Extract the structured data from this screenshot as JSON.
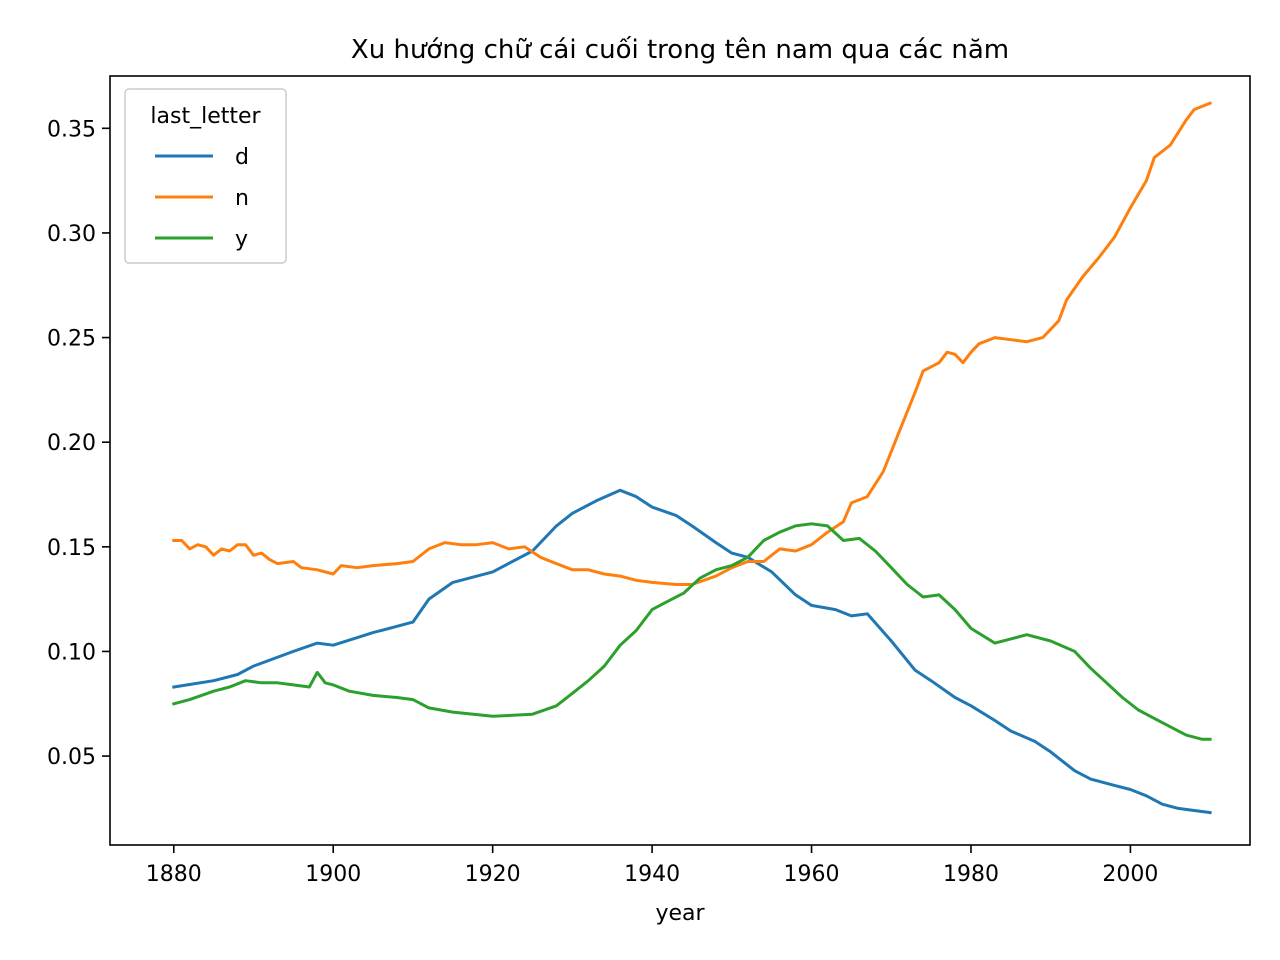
{
  "chart_data": {
    "type": "line",
    "title": "Xu hướng chữ cái cuối trong tên nam qua các năm",
    "xlabel": "year",
    "ylabel": "",
    "xlim": [
      1872,
      2015
    ],
    "ylim": [
      0.0075,
      0.375
    ],
    "xticks": [
      1880,
      1900,
      1920,
      1940,
      1960,
      1980,
      2000
    ],
    "xtick_labels": [
      "1880",
      "1900",
      "1920",
      "1940",
      "1960",
      "1980",
      "2000"
    ],
    "yticks": [
      0.05,
      0.1,
      0.15,
      0.2,
      0.25,
      0.3,
      0.35
    ],
    "ytick_labels": [
      "0.05",
      "0.10",
      "0.15",
      "0.20",
      "0.25",
      "0.30",
      "0.35"
    ],
    "grid": false,
    "legend": {
      "title": "last_letter",
      "position": "top-left"
    },
    "series": [
      {
        "name": "d",
        "color": "#1f77b4",
        "points": [
          [
            1880,
            0.083
          ],
          [
            1885,
            0.086
          ],
          [
            1888,
            0.089
          ],
          [
            1890,
            0.093
          ],
          [
            1895,
            0.1
          ],
          [
            1898,
            0.104
          ],
          [
            1900,
            0.103
          ],
          [
            1905,
            0.109
          ],
          [
            1910,
            0.114
          ],
          [
            1912,
            0.125
          ],
          [
            1915,
            0.133
          ],
          [
            1920,
            0.138
          ],
          [
            1925,
            0.148
          ],
          [
            1928,
            0.16
          ],
          [
            1930,
            0.166
          ],
          [
            1933,
            0.172
          ],
          [
            1936,
            0.177
          ],
          [
            1938,
            0.174
          ],
          [
            1940,
            0.169
          ],
          [
            1943,
            0.165
          ],
          [
            1945,
            0.16
          ],
          [
            1948,
            0.152
          ],
          [
            1950,
            0.147
          ],
          [
            1952,
            0.145
          ],
          [
            1955,
            0.138
          ],
          [
            1958,
            0.127
          ],
          [
            1960,
            0.122
          ],
          [
            1963,
            0.12
          ],
          [
            1965,
            0.117
          ],
          [
            1967,
            0.118
          ],
          [
            1970,
            0.105
          ],
          [
            1973,
            0.091
          ],
          [
            1975,
            0.086
          ],
          [
            1978,
            0.078
          ],
          [
            1980,
            0.074
          ],
          [
            1983,
            0.067
          ],
          [
            1985,
            0.062
          ],
          [
            1988,
            0.057
          ],
          [
            1990,
            0.052
          ],
          [
            1993,
            0.043
          ],
          [
            1995,
            0.039
          ],
          [
            1998,
            0.036
          ],
          [
            2000,
            0.034
          ],
          [
            2002,
            0.031
          ],
          [
            2004,
            0.027
          ],
          [
            2006,
            0.025
          ],
          [
            2008,
            0.024
          ],
          [
            2010,
            0.023
          ]
        ]
      },
      {
        "name": "n",
        "color": "#ff7f0e",
        "points": [
          [
            1880,
            0.153
          ],
          [
            1881,
            0.153
          ],
          [
            1882,
            0.149
          ],
          [
            1883,
            0.151
          ],
          [
            1884,
            0.15
          ],
          [
            1885,
            0.146
          ],
          [
            1886,
            0.149
          ],
          [
            1887,
            0.148
          ],
          [
            1888,
            0.151
          ],
          [
            1889,
            0.151
          ],
          [
            1890,
            0.146
          ],
          [
            1891,
            0.147
          ],
          [
            1892,
            0.144
          ],
          [
            1893,
            0.142
          ],
          [
            1895,
            0.143
          ],
          [
            1896,
            0.14
          ],
          [
            1898,
            0.139
          ],
          [
            1900,
            0.137
          ],
          [
            1901,
            0.141
          ],
          [
            1903,
            0.14
          ],
          [
            1905,
            0.141
          ],
          [
            1908,
            0.142
          ],
          [
            1910,
            0.143
          ],
          [
            1912,
            0.149
          ],
          [
            1914,
            0.152
          ],
          [
            1916,
            0.151
          ],
          [
            1918,
            0.151
          ],
          [
            1920,
            0.152
          ],
          [
            1922,
            0.149
          ],
          [
            1924,
            0.15
          ],
          [
            1926,
            0.145
          ],
          [
            1928,
            0.142
          ],
          [
            1930,
            0.139
          ],
          [
            1932,
            0.139
          ],
          [
            1934,
            0.137
          ],
          [
            1936,
            0.136
          ],
          [
            1938,
            0.134
          ],
          [
            1940,
            0.133
          ],
          [
            1943,
            0.132
          ],
          [
            1945,
            0.132
          ],
          [
            1948,
            0.136
          ],
          [
            1950,
            0.14
          ],
          [
            1952,
            0.143
          ],
          [
            1954,
            0.143
          ],
          [
            1956,
            0.149
          ],
          [
            1958,
            0.148
          ],
          [
            1960,
            0.151
          ],
          [
            1962,
            0.157
          ],
          [
            1964,
            0.162
          ],
          [
            1965,
            0.171
          ],
          [
            1967,
            0.174
          ],
          [
            1969,
            0.186
          ],
          [
            1971,
            0.205
          ],
          [
            1973,
            0.224
          ],
          [
            1974,
            0.234
          ],
          [
            1976,
            0.238
          ],
          [
            1977,
            0.243
          ],
          [
            1978,
            0.242
          ],
          [
            1979,
            0.238
          ],
          [
            1980,
            0.243
          ],
          [
            1981,
            0.247
          ],
          [
            1983,
            0.25
          ],
          [
            1985,
            0.249
          ],
          [
            1987,
            0.248
          ],
          [
            1989,
            0.25
          ],
          [
            1991,
            0.258
          ],
          [
            1992,
            0.268
          ],
          [
            1994,
            0.279
          ],
          [
            1996,
            0.288
          ],
          [
            1998,
            0.298
          ],
          [
            2000,
            0.312
          ],
          [
            2002,
            0.325
          ],
          [
            2003,
            0.336
          ],
          [
            2005,
            0.342
          ],
          [
            2007,
            0.354
          ],
          [
            2008,
            0.359
          ],
          [
            2010,
            0.362
          ]
        ]
      },
      {
        "name": "y",
        "color": "#2ca02c",
        "points": [
          [
            1880,
            0.075
          ],
          [
            1882,
            0.077
          ],
          [
            1885,
            0.081
          ],
          [
            1887,
            0.083
          ],
          [
            1889,
            0.086
          ],
          [
            1891,
            0.085
          ],
          [
            1893,
            0.085
          ],
          [
            1895,
            0.084
          ],
          [
            1897,
            0.083
          ],
          [
            1898,
            0.09
          ],
          [
            1899,
            0.085
          ],
          [
            1900,
            0.084
          ],
          [
            1902,
            0.081
          ],
          [
            1905,
            0.079
          ],
          [
            1908,
            0.078
          ],
          [
            1910,
            0.077
          ],
          [
            1912,
            0.073
          ],
          [
            1915,
            0.071
          ],
          [
            1920,
            0.069
          ],
          [
            1925,
            0.07
          ],
          [
            1928,
            0.074
          ],
          [
            1930,
            0.08
          ],
          [
            1932,
            0.086
          ],
          [
            1934,
            0.093
          ],
          [
            1936,
            0.103
          ],
          [
            1938,
            0.11
          ],
          [
            1940,
            0.12
          ],
          [
            1942,
            0.124
          ],
          [
            1944,
            0.128
          ],
          [
            1946,
            0.135
          ],
          [
            1948,
            0.139
          ],
          [
            1950,
            0.141
          ],
          [
            1952,
            0.145
          ],
          [
            1954,
            0.153
          ],
          [
            1956,
            0.157
          ],
          [
            1958,
            0.16
          ],
          [
            1960,
            0.161
          ],
          [
            1962,
            0.16
          ],
          [
            1964,
            0.153
          ],
          [
            1966,
            0.154
          ],
          [
            1968,
            0.148
          ],
          [
            1970,
            0.14
          ],
          [
            1972,
            0.132
          ],
          [
            1974,
            0.126
          ],
          [
            1976,
            0.127
          ],
          [
            1978,
            0.12
          ],
          [
            1980,
            0.111
          ],
          [
            1983,
            0.104
          ],
          [
            1985,
            0.106
          ],
          [
            1987,
            0.108
          ],
          [
            1990,
            0.105
          ],
          [
            1993,
            0.1
          ],
          [
            1995,
            0.092
          ],
          [
            1997,
            0.085
          ],
          [
            1999,
            0.078
          ],
          [
            2001,
            0.072
          ],
          [
            2003,
            0.068
          ],
          [
            2005,
            0.064
          ],
          [
            2007,
            0.06
          ],
          [
            2009,
            0.058
          ],
          [
            2010,
            0.058
          ]
        ]
      }
    ]
  }
}
